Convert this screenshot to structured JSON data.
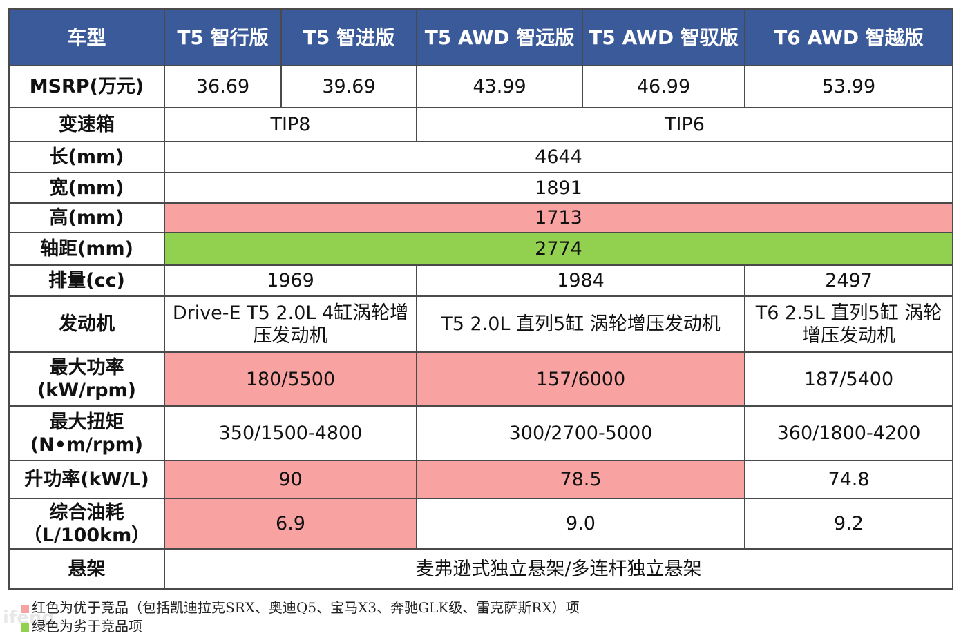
{
  "header": {
    "label": "车型",
    "models": [
      "T5 智行版",
      "T5 智进版",
      "T5 AWD 智远版",
      "T5 AWD 智驭版",
      "T6 AWD 智越版"
    ]
  },
  "rows": {
    "msrp": {
      "label": "MSRP(万元)",
      "values": [
        "36.69",
        "39.69",
        "43.99",
        "46.99",
        "53.99"
      ]
    },
    "gearbox": {
      "label": "变速箱",
      "values": [
        "TIP8",
        "TIP6"
      ]
    },
    "length": {
      "label": "长(mm)",
      "value": "4644"
    },
    "width": {
      "label": "宽(mm)",
      "value": "1891"
    },
    "height": {
      "label": "高(mm)",
      "value": "1713"
    },
    "wheelbase": {
      "label": "轴距(mm)",
      "value": "2774"
    },
    "displacement": {
      "label": "排量(cc)",
      "values": [
        "1969",
        "1984",
        "2497"
      ]
    },
    "engine": {
      "label": "发动机",
      "values": [
        "Drive-E T5 2.0L 4缸涡轮增压发动机",
        "T5 2.0L 直列5缸 涡轮增压发动机",
        "T6 2.5L 直列5缸 涡轮增压发动机"
      ]
    },
    "power": {
      "label_line1": "最大功率",
      "label_line2": "(kW/rpm)",
      "values": [
        "180/5500",
        "157/6000",
        "187/5400"
      ]
    },
    "torque": {
      "label_line1": "最大扭矩",
      "label_line2": "(N•m/rpm)",
      "values": [
        "350/1500-4800",
        "300/2700-5000",
        "360/1800-4200"
      ]
    },
    "specific_power": {
      "label": "升功率(kW/L)",
      "values": [
        "90",
        "78.5",
        "74.8"
      ]
    },
    "fuel": {
      "label_line1": "综合油耗",
      "label_line2": "（L/100km）",
      "values": [
        "6.9",
        "9.0",
        "9.2"
      ]
    },
    "suspension": {
      "label": "悬架",
      "value": "麦弗逊式独立悬架/多连杆独立悬架"
    }
  },
  "legend": {
    "red": "红色为优于竞品（包括凯迪拉克SRX、奥迪Q5、宝马X3、奔驰GLK级、雷克萨斯RX）项",
    "green": "绿色为劣于竞品项"
  },
  "colors": {
    "header_bg": "#3b5a9a",
    "better": "#f9a2a2",
    "worse": "#92d050"
  },
  "watermark": "ifeng"
}
